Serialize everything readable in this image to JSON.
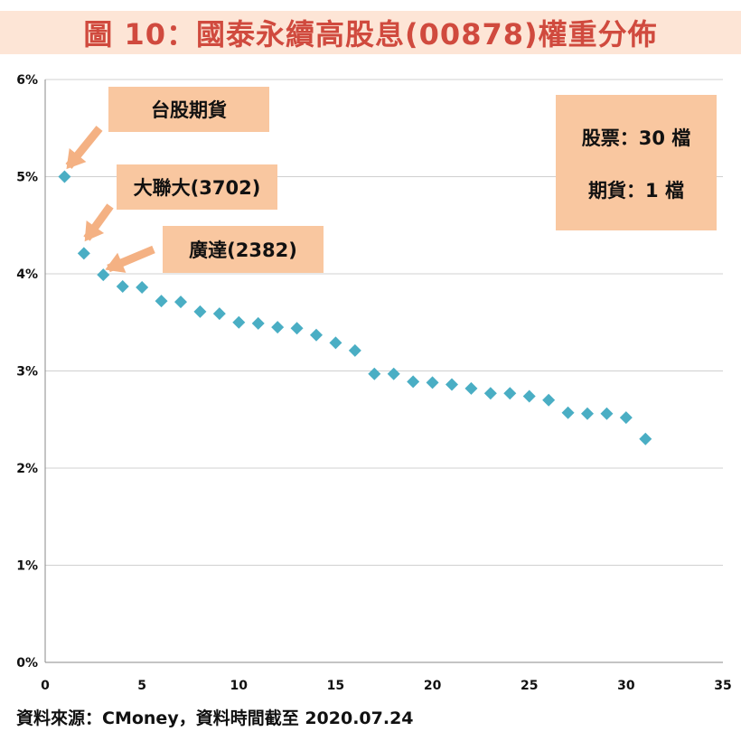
{
  "title": "圖 10：國泰永續高股息(00878)權重分佈",
  "source": "資料來源：CMoney，資料時間截至 2020.07.24",
  "colors": {
    "title_bg": "#fde5d6",
    "title_text": "#d04a3e",
    "marker": "#4aaec4",
    "callout_bg": "#f9c7a0",
    "arrow": "#f4b183",
    "grid": "#d0d0d0"
  },
  "chart_data": {
    "type": "scatter",
    "xlabel": "",
    "ylabel": "",
    "xlim": [
      0,
      35
    ],
    "ylim": [
      0,
      6
    ],
    "x_ticks": [
      "0",
      "5",
      "10",
      "15",
      "20",
      "25",
      "30",
      "35"
    ],
    "y_ticks": [
      "0%",
      "1%",
      "2%",
      "3%",
      "4%",
      "5%",
      "6%"
    ],
    "grid": "horizontal",
    "marker": "diamond",
    "series": [
      {
        "x": [
          1,
          2,
          3,
          4,
          5,
          6,
          7,
          8,
          9,
          10,
          11,
          12,
          13,
          14,
          15,
          16,
          17,
          18,
          19,
          20,
          21,
          22,
          23,
          24,
          25,
          26,
          27,
          28,
          29,
          30,
          31
        ],
        "y": [
          5.0,
          4.21,
          3.99,
          3.87,
          3.86,
          3.72,
          3.71,
          3.61,
          3.59,
          3.5,
          3.49,
          3.45,
          3.44,
          3.37,
          3.29,
          3.21,
          2.97,
          2.97,
          2.89,
          2.88,
          2.86,
          2.82,
          2.77,
          2.77,
          2.74,
          2.7,
          2.57,
          2.56,
          2.56,
          2.52,
          2.3
        ]
      }
    ],
    "annotations": [
      {
        "text": "台股期貨",
        "point": 1
      },
      {
        "text": "大聯大(3702)",
        "point": 2
      },
      {
        "text": "廣達(2382)",
        "point": 3
      }
    ],
    "info_box": [
      "股票：30 檔",
      "期貨：1 檔"
    ]
  }
}
